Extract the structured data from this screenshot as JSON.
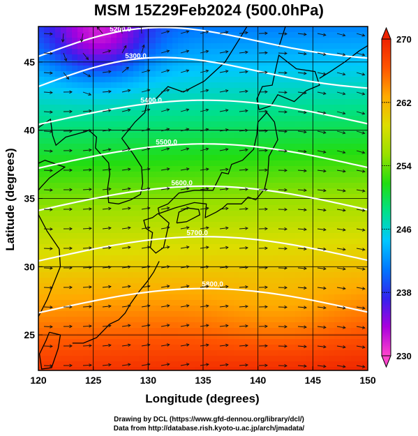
{
  "title": "MSM 15Z29Feb2024 (500.0hPa)",
  "chart_data": {
    "type": "heatmap",
    "title": "MSM 15Z29Feb2024 (500.0hPa)",
    "xlabel": "Longitude (degrees)",
    "ylabel": "Latitude  (degrees)",
    "xlim": [
      120,
      150
    ],
    "ylim": [
      22.4,
      47.6
    ],
    "x_ticks": [
      "120",
      "125",
      "130",
      "135",
      "140",
      "145",
      "150"
    ],
    "y_ticks": [
      "25",
      "30",
      "35",
      "40",
      "45"
    ],
    "grid": true,
    "colorbar": {
      "min": 230,
      "max": 270,
      "tick_labels": [
        "230",
        "238",
        "246",
        "254",
        "262",
        "270"
      ],
      "colors": [
        "#ff44cc",
        "#aa00dd",
        "#3322ee",
        "#0077ff",
        "#00c8ff",
        "#00e08a",
        "#22dd11",
        "#99e000",
        "#dddd00",
        "#ffaa00",
        "#ff5500",
        "#ee2200"
      ]
    },
    "contour_labels": [
      "5200.0",
      "5300.0",
      "5400.0",
      "5500.0",
      "5600.0",
      "5700.0",
      "5800.0"
    ],
    "contour_heights_m": [
      5200,
      5300,
      5400,
      5500,
      5600,
      5700,
      5800
    ]
  },
  "credits": {
    "line1": "Drawing by DCL (https://www.gfd-dennou.org/library/dcl/)",
    "line2": "Data from http://database.rish.kyoto-u.ac.jp/arch/jmadata/"
  }
}
